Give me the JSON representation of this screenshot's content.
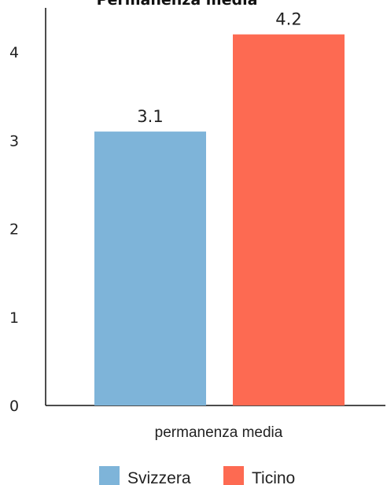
{
  "chart_data": {
    "type": "bar",
    "title": "Permanenza media",
    "xlabel": "permanenza media",
    "ylabel": "",
    "ylim": [
      0,
      4.5
    ],
    "yticks": [
      0,
      1,
      2,
      3,
      4
    ],
    "categories": [
      "permanenza media"
    ],
    "series": [
      {
        "name": "Svizzera",
        "values": [
          3.1
        ],
        "color": "#7eb4d9"
      },
      {
        "name": "Ticino",
        "values": [
          4.2
        ],
        "color": "#fd6a52"
      }
    ],
    "data_labels": true,
    "grid": false,
    "legend_position": "bottom"
  }
}
